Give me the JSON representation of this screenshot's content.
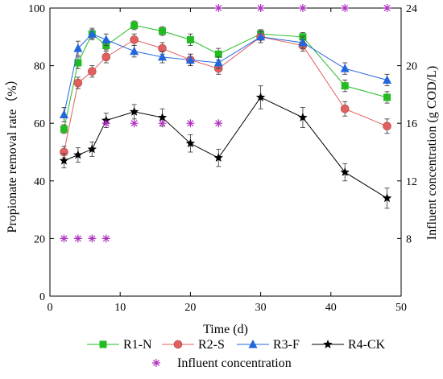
{
  "chart_data": {
    "type": "line",
    "xlabel": "Time (d)",
    "ylabel": "Propionate removal rate（%）",
    "y2label": "Influent concentration (g COD/L)",
    "xlim": [
      0,
      50
    ],
    "ylim": [
      0,
      100
    ],
    "y2lim": [
      4,
      24
    ],
    "xticks": [
      "0",
      "10",
      "20",
      "30",
      "40",
      "50"
    ],
    "yticks": [
      "0",
      "20",
      "40",
      "60",
      "80",
      "100"
    ],
    "y2ticks": [
      "8",
      "12",
      "16",
      "20",
      "24"
    ],
    "grid": false,
    "legend_position": "bottom",
    "series": [
      {
        "name": "R1-N",
        "color": "#22bb22",
        "marker": "square",
        "x": [
          2,
          4,
          6,
          8,
          12,
          16,
          20,
          24,
          30,
          36,
          42,
          48
        ],
        "y": [
          58,
          81,
          91,
          87,
          94,
          92,
          89,
          84,
          91,
          90,
          73,
          69
        ],
        "err": [
          1.5,
          2,
          1.5,
          1.5,
          1.5,
          1.5,
          2,
          2,
          1.5,
          1.5,
          2,
          2
        ]
      },
      {
        "name": "R2-S",
        "color": "#e06060",
        "marker": "circle",
        "x": [
          2,
          4,
          6,
          8,
          12,
          16,
          20,
          24,
          30,
          36,
          42,
          48
        ],
        "y": [
          50,
          74,
          78,
          83,
          89,
          86,
          82,
          79,
          90,
          87,
          65,
          59
        ],
        "err": [
          2,
          2,
          2,
          2,
          2,
          2,
          2,
          2,
          2,
          2,
          2.5,
          2.5
        ]
      },
      {
        "name": "R3-F",
        "color": "#2266dd",
        "marker": "triangle",
        "x": [
          2,
          4,
          6,
          8,
          12,
          16,
          20,
          24,
          30,
          36,
          42,
          48
        ],
        "y": [
          63,
          86,
          91,
          89,
          85,
          83,
          82,
          81,
          90,
          88,
          79,
          75
        ],
        "err": [
          2.5,
          2.5,
          2,
          2,
          2,
          2,
          2,
          2,
          2,
          2,
          2,
          2
        ]
      },
      {
        "name": "R4-CK",
        "color": "#000000",
        "marker": "star",
        "x": [
          2,
          4,
          6,
          8,
          12,
          16,
          20,
          24,
          30,
          36,
          42,
          48
        ],
        "y": [
          47,
          49,
          51,
          61,
          64,
          62,
          53,
          48,
          69,
          62,
          43,
          34
        ],
        "err": [
          2.5,
          2.5,
          2.5,
          2.5,
          2.5,
          3,
          3,
          3,
          4,
          3.5,
          3,
          3.5
        ]
      }
    ],
    "influent": {
      "name": "Influent concentration",
      "color": "#b030c0",
      "marker": "asterisk",
      "axis": "y2",
      "x": [
        2,
        4,
        6,
        8,
        8,
        12,
        16,
        20,
        24,
        24,
        30,
        36,
        42,
        48
      ],
      "y": [
        8,
        8,
        8,
        8,
        16,
        16,
        16,
        16,
        16,
        24,
        24,
        24,
        24,
        24
      ]
    }
  }
}
